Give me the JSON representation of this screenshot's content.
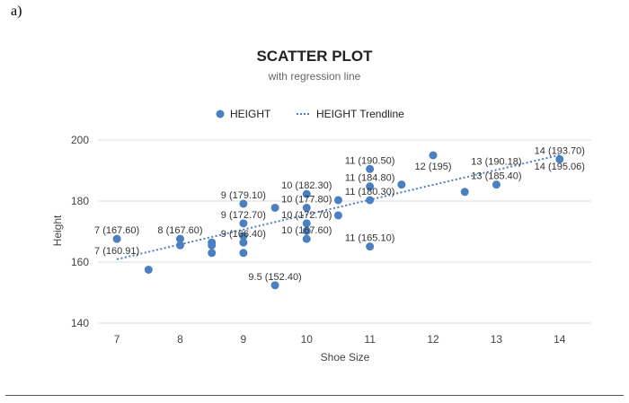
{
  "figure": {
    "part_label": "a)"
  },
  "chart_data": {
    "type": "scatter",
    "title": "SCATTER PLOT",
    "subtitle": "with regression line",
    "xlabel": "Shoe Size",
    "ylabel": "Height",
    "xlim": [
      6.7,
      14.5
    ],
    "ylim": [
      140,
      200
    ],
    "xticks": [
      7,
      8,
      9,
      10,
      11,
      12,
      13,
      14
    ],
    "yticks": [
      140,
      160,
      180,
      200
    ],
    "grid": "horizontal",
    "legend_position": "top",
    "series": [
      {
        "name": "HEIGHT",
        "color": "#4a7fc1",
        "points": [
          {
            "x": 7,
            "y": 167.6
          },
          {
            "x": 7.5,
            "y": 157.5
          },
          {
            "x": 8,
            "y": 167.6
          },
          {
            "x": 8,
            "y": 165.5
          },
          {
            "x": 8.5,
            "y": 166.4
          },
          {
            "x": 8.5,
            "y": 165.5
          },
          {
            "x": 8.5,
            "y": 163
          },
          {
            "x": 9,
            "y": 179.1
          },
          {
            "x": 9,
            "y": 172.7
          },
          {
            "x": 9,
            "y": 168.5
          },
          {
            "x": 9,
            "y": 166.4
          },
          {
            "x": 9,
            "y": 163
          },
          {
            "x": 9.5,
            "y": 177.8
          },
          {
            "x": 9.5,
            "y": 152.4
          },
          {
            "x": 10,
            "y": 182.3
          },
          {
            "x": 10,
            "y": 177.8
          },
          {
            "x": 10,
            "y": 172.7
          },
          {
            "x": 10,
            "y": 170.2
          },
          {
            "x": 10,
            "y": 167.6
          },
          {
            "x": 10.5,
            "y": 180.3
          },
          {
            "x": 10.5,
            "y": 175.3
          },
          {
            "x": 11,
            "y": 190.5
          },
          {
            "x": 11,
            "y": 184.8
          },
          {
            "x": 11,
            "y": 180.3
          },
          {
            "x": 11,
            "y": 165.1
          },
          {
            "x": 11.5,
            "y": 185.4
          },
          {
            "x": 12,
            "y": 195
          },
          {
            "x": 12.5,
            "y": 183
          },
          {
            "x": 13,
            "y": 185.4
          },
          {
            "x": 14,
            "y": 193.7
          }
        ]
      },
      {
        "name": "HEIGHT Trendline",
        "type": "trendline",
        "style": "dotted",
        "color": "#4a7fc1",
        "x": [
          7,
          14
        ],
        "y": [
          160.91,
          195.06
        ]
      }
    ],
    "data_labels": [
      {
        "text": "7 (167.60)",
        "x": 7,
        "y": 167.6,
        "pos": "above"
      },
      {
        "text": "7 (160.91)",
        "x": 7,
        "y": 160.91,
        "pos": "above"
      },
      {
        "text": "8 (167.60)",
        "x": 8,
        "y": 167.6,
        "pos": "above"
      },
      {
        "text": "9 (179.10)",
        "x": 9,
        "y": 179.1,
        "pos": "above"
      },
      {
        "text": "9 (172.70)",
        "x": 9,
        "y": 172.7,
        "pos": "above"
      },
      {
        "text": "9 (166.40)",
        "x": 9,
        "y": 166.4,
        "pos": "above"
      },
      {
        "text": "9.5 (152.40)",
        "x": 9.5,
        "y": 152.4,
        "pos": "above"
      },
      {
        "text": "10 (182.30)",
        "x": 10,
        "y": 182.3,
        "pos": "above"
      },
      {
        "text": "10 (177.80)",
        "x": 10,
        "y": 177.8,
        "pos": "above"
      },
      {
        "text": "10 (172.70)",
        "x": 10,
        "y": 172.7,
        "pos": "above"
      },
      {
        "text": "10 (167.60)",
        "x": 10,
        "y": 167.6,
        "pos": "above"
      },
      {
        "text": "11 (190.50)",
        "x": 11,
        "y": 190.5,
        "pos": "above"
      },
      {
        "text": "11 (184.80)",
        "x": 11,
        "y": 184.8,
        "pos": "above"
      },
      {
        "text": "11 (180.30)",
        "x": 11,
        "y": 180.3,
        "pos": "above"
      },
      {
        "text": "11 (165.10)",
        "x": 11,
        "y": 165.1,
        "pos": "above"
      },
      {
        "text": "12 (195)",
        "x": 12,
        "y": 195,
        "pos": "below"
      },
      {
        "text": "13 (190.18)",
        "x": 13,
        "y": 190.18,
        "pos": "above"
      },
      {
        "text": "13 (185.40)",
        "x": 13,
        "y": 185.4,
        "pos": "above"
      },
      {
        "text": "14 (193.70)",
        "x": 14,
        "y": 193.7,
        "pos": "above"
      },
      {
        "text": "14 (195.06)",
        "x": 14,
        "y": 195.06,
        "pos": "below"
      }
    ]
  }
}
